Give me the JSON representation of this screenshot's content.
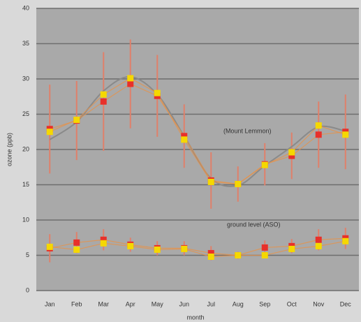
{
  "chart_data": {
    "type": "line",
    "x_label": "month",
    "y_label": "ozone (ppb)",
    "annotations": [
      "(Mount Lemmon)",
      "ground level (ASO)"
    ],
    "categories": [
      "Jan",
      "Feb",
      "Mar",
      "Apr",
      "May",
      "Jun",
      "Jul",
      "Aug",
      "Sep",
      "Oct",
      "Nov",
      "Dec"
    ],
    "ylim": [
      0,
      40
    ],
    "yticks": [
      0,
      5,
      10,
      15,
      20,
      25,
      30,
      35,
      40
    ],
    "grid": true,
    "series": [
      {
        "color": "#8a8a8a",
        "marker": "none",
        "smooth": true,
        "values": [
          21.4,
          23.9,
          28.3,
          30.3,
          27.8,
          21.9,
          15.9,
          14.9,
          17.7,
          20.4,
          23.2,
          22.6
        ]
      },
      {
        "color": "#e8302a",
        "marker": "square",
        "values": [
          22.9,
          24.1,
          26.8,
          29.3,
          27.6,
          21.9,
          15.6,
          15.1,
          17.9,
          19.1,
          22.1,
          22.5
        ],
        "errors": [
          6.3,
          5.6,
          7,
          6.3,
          5.8,
          4.5,
          4,
          2.5,
          3,
          3.3,
          4.7,
          5.3
        ]
      },
      {
        "color": "#f5d800",
        "marker": "square",
        "values": [
          22.5,
          24.2,
          27.8,
          30.1,
          28,
          21.4,
          15.4,
          15.1,
          17.8,
          19.6,
          23.4,
          22.1
        ]
      },
      {
        "color": "#e8302a",
        "marker": "square",
        "values": [
          6,
          6.8,
          7.2,
          6.5,
          6,
          6,
          5.3,
          5,
          6.1,
          6.3,
          7.2,
          7.4
        ],
        "errors": [
          2,
          1.5,
          1.5,
          1,
          1,
          1,
          1,
          0.5,
          1,
          1,
          1.5,
          1.5
        ]
      },
      {
        "color": "#f5d800",
        "marker": "square",
        "values": [
          6.2,
          5.8,
          6.7,
          6.3,
          5.8,
          5.9,
          4.8,
          5,
          5,
          5.9,
          6.3,
          7
        ]
      }
    ]
  }
}
